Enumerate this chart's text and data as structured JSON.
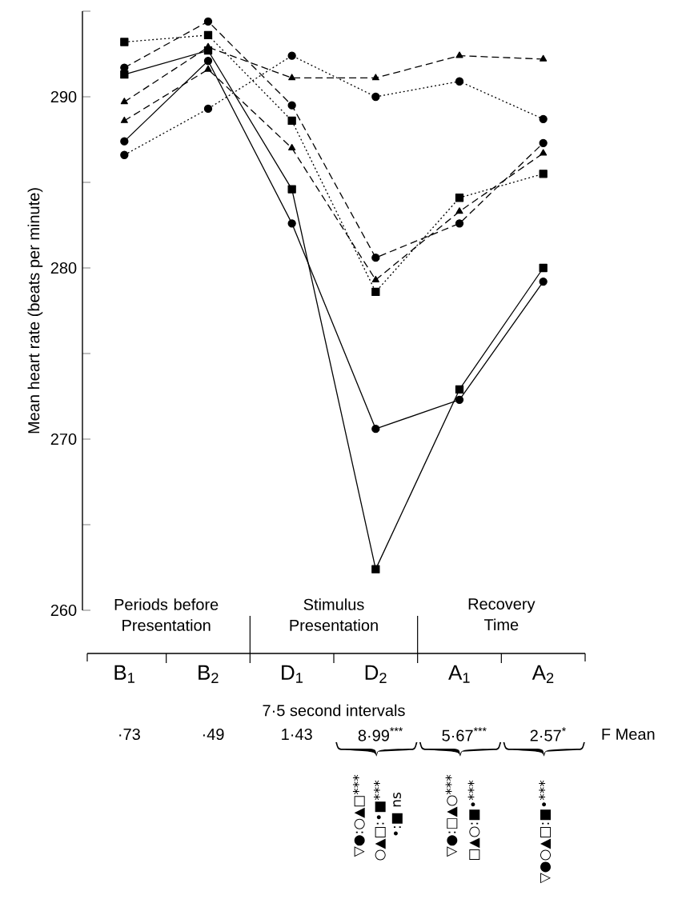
{
  "chart_data": {
    "type": "line",
    "xlabel": "7·5 second intervals",
    "ylabel": "Mean heart rate (beats per minute)",
    "categories": [
      "B$_{1}$",
      "B$_{2}$",
      "D$_{1}$",
      "D$_{2}$",
      "A$_{1}$",
      "A$_{2}$"
    ],
    "ylim": [
      260,
      295
    ],
    "yticks": [
      260,
      {
        "value": 265,
        "label": null
      },
      270,
      {
        "value": 275,
        "label": null
      },
      280,
      {
        "value": 285,
        "label": null
      },
      290,
      {
        "value": 295,
        "label": null
      }
    ],
    "series": [
      {
        "color": "#000000",
        "marker": "circle",
        "line_style": "dashed",
        "values": [
          291.7,
          294.4,
          289.5,
          280.6,
          282.6,
          287.3
        ]
      },
      {
        "color": "#000000",
        "marker": "square",
        "line_style": "dotted",
        "values": [
          293.2,
          293.6,
          288.6,
          278.6,
          284.1,
          285.5
        ]
      },
      {
        "color": "#000000",
        "marker": "square",
        "line_style": "solid",
        "values": [
          291.3,
          292.7,
          284.6,
          262.4,
          272.9,
          280.0
        ]
      },
      {
        "color": "#000000",
        "marker": "triangle",
        "line_style": "dashed",
        "values": [
          289.7,
          292.9,
          291.1,
          291.1,
          292.4,
          292.2
        ]
      },
      {
        "color": "#000000",
        "marker": "triangle",
        "line_style": "dashed",
        "values": [
          288.6,
          291.6,
          287.0,
          279.3,
          283.3,
          286.7
        ]
      },
      {
        "color": "#000000",
        "marker": "circle",
        "line_style": "solid",
        "values": [
          287.4,
          292.1,
          282.6,
          270.6,
          272.3,
          279.2
        ]
      },
      {
        "color": "#000000",
        "marker": "circle",
        "line_style": "dotted",
        "values": [
          286.6,
          289.3,
          292.4,
          290.0,
          290.9,
          288.7
        ]
      }
    ],
    "annotations": [
      "Periods before Presentation",
      "Stimulus Presentation",
      "Recovery Time",
      "·73",
      "·49",
      "1·43",
      "8·99$^{***}$",
      "5·67$^{***}$",
      "2·57$^{*}$",
      "F Mean",
      "▽●:○▲□***",
      "○▲□:•■***",
      "•:■ ns",
      "▽●:□▲○***",
      "□▲○:■•***",
      "▽●○▲□:■•***"
    ]
  }
}
